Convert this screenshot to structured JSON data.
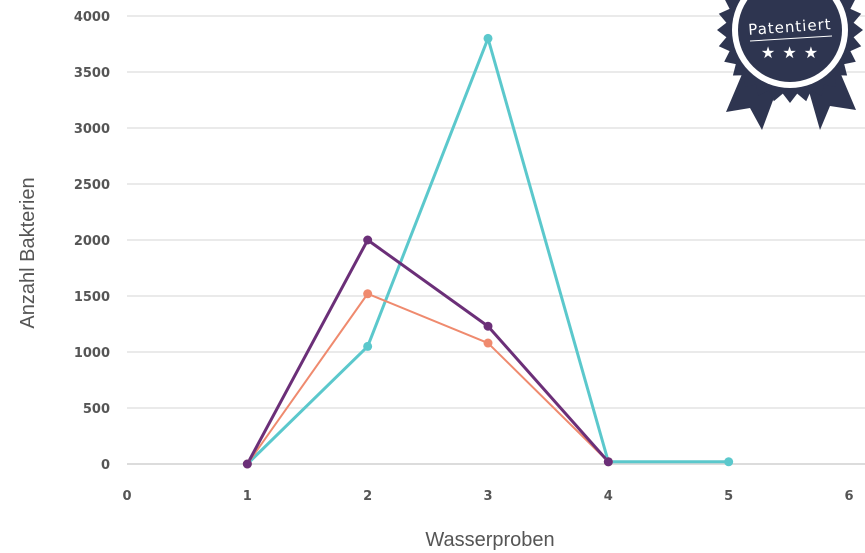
{
  "chart_data": {
    "type": "line",
    "xlabel": "Wasserproben",
    "ylabel": "Anzahl Bakterien",
    "xlim": [
      0,
      6
    ],
    "ylim": [
      0,
      4000
    ],
    "x_ticks": [
      0,
      1,
      2,
      3,
      4,
      5,
      6
    ],
    "y_ticks": [
      0,
      500,
      1000,
      1500,
      2000,
      2500,
      3000,
      3500,
      4000
    ],
    "grid": true,
    "series": [
      {
        "color": "#5bc8cc",
        "x": [
          1,
          2,
          3,
          4,
          5
        ],
        "y": [
          0,
          1050,
          3800,
          20,
          20
        ]
      },
      {
        "color": "#ef8a6e",
        "x": [
          1,
          2,
          3,
          4
        ],
        "y": [
          0,
          1520,
          1080,
          20
        ]
      },
      {
        "color": "#6b2f78",
        "x": [
          1,
          2,
          3,
          4
        ],
        "y": [
          0,
          2000,
          1230,
          20
        ]
      }
    ]
  },
  "badge": {
    "label": "Patentiert",
    "stars": "★ ★ ★",
    "color": "#2e3550"
  }
}
